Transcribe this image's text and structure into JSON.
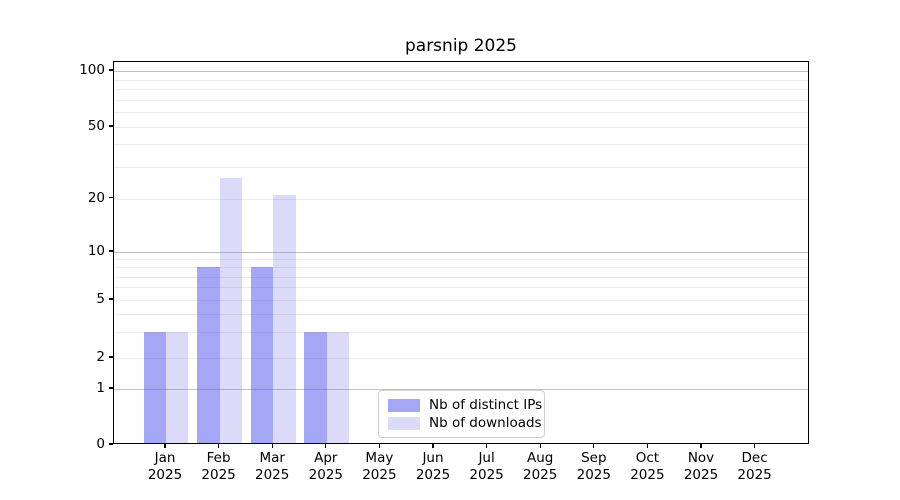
{
  "chart_data": {
    "type": "bar",
    "title": "parsnip 2025",
    "categories": [
      "Jan",
      "Feb",
      "Mar",
      "Apr",
      "May",
      "Jun",
      "Jul",
      "Aug",
      "Sep",
      "Oct",
      "Nov",
      "Dec"
    ],
    "x_tick_second_line": "2025",
    "series": [
      {
        "name": "Nb of distinct IPs",
        "color": "#a6a6f6",
        "values": [
          3,
          8,
          8,
          3,
          0,
          0,
          0,
          0,
          0,
          0,
          0,
          0
        ]
      },
      {
        "name": "Nb of downloads",
        "color": "#dbdbf9",
        "values": [
          3,
          26,
          21,
          3,
          0,
          0,
          0,
          0,
          0,
          0,
          0,
          0
        ]
      }
    ],
    "xlabel": "",
    "ylabel": "",
    "y_ticks": [
      0,
      1,
      2,
      5,
      10,
      20,
      50,
      100
    ],
    "ylim": [
      0,
      112
    ],
    "y_scale": "log-like with zero baseline",
    "grid": {
      "major_lines": [
        1,
        10,
        100
      ],
      "minor_lines": [
        2,
        3,
        4,
        5,
        6,
        7,
        8,
        9,
        20,
        30,
        40,
        50,
        60,
        70,
        80,
        90
      ],
      "drawn_over_bars": true
    },
    "legend": {
      "position": "lower center-right inside plot",
      "entries": [
        "Nb of distinct IPs",
        "Nb of downloads"
      ]
    }
  },
  "colors": {
    "background": "#ffffff",
    "axis": "#000000",
    "major_grid": "#c4c4c4",
    "minor_grid": "#ebebeb",
    "bar_distinct_ips": "#a6a6f6",
    "bar_downloads": "#dbdbf9"
  }
}
